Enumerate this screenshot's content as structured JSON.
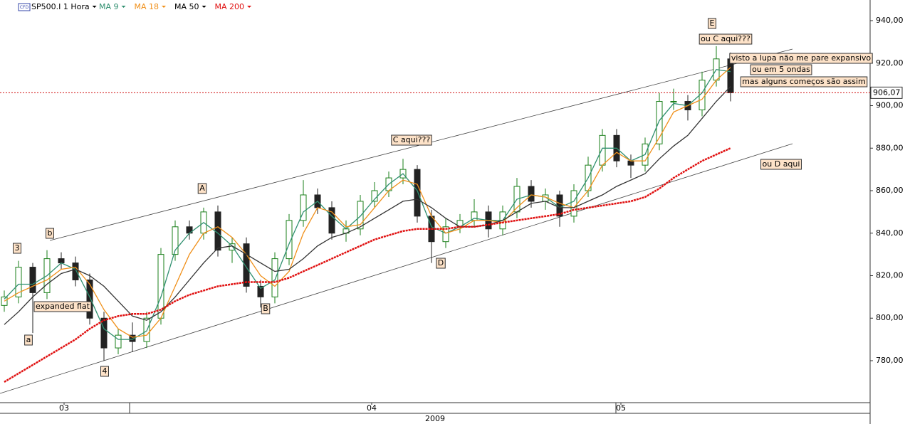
{
  "chart_data": {
    "type": "candlestick",
    "badge": "CFD",
    "title": "SP500.I 1 Hora",
    "up_color": "#1a7f1a",
    "down_color": "#222222",
    "open": [
      806,
      810,
      824,
      812,
      828,
      826,
      818,
      800,
      786,
      792,
      789,
      800,
      830,
      843,
      840,
      850,
      832,
      835,
      815,
      810,
      828,
      846,
      858,
      852,
      840,
      842,
      855,
      860,
      866,
      870,
      848,
      836,
      843,
      846,
      850,
      842,
      850,
      862,
      855,
      858,
      848,
      860,
      872,
      886,
      874,
      872,
      882,
      902,
      902,
      898,
      912,
      922
    ],
    "high": [
      813,
      827,
      826,
      832,
      831,
      829,
      821,
      803,
      795,
      798,
      803,
      833,
      846,
      846,
      852,
      853,
      838,
      838,
      818,
      831,
      849,
      865,
      861,
      855,
      846,
      858,
      864,
      869,
      875,
      872,
      851,
      847,
      849,
      856,
      853,
      853,
      866,
      865,
      861,
      860,
      863,
      876,
      889,
      889,
      877,
      885,
      906,
      908,
      905,
      916,
      928,
      925
    ],
    "low": [
      803,
      807,
      793,
      809,
      823,
      815,
      797,
      780,
      783,
      784,
      786,
      797,
      827,
      837,
      837,
      829,
      826,
      812,
      805,
      807,
      825,
      843,
      849,
      837,
      836,
      839,
      852,
      857,
      863,
      845,
      826,
      833,
      840,
      843,
      838,
      839,
      847,
      852,
      851,
      843,
      845,
      857,
      869,
      871,
      866,
      869,
      879,
      898,
      893,
      895,
      909,
      902
    ],
    "close": [
      810,
      824,
      812,
      828,
      826,
      818,
      800,
      786,
      792,
      789,
      800,
      830,
      843,
      840,
      850,
      832,
      835,
      815,
      810,
      828,
      846,
      858,
      852,
      840,
      842,
      855,
      860,
      866,
      870,
      848,
      836,
      843,
      846,
      850,
      842,
      850,
      862,
      855,
      858,
      848,
      860,
      872,
      886,
      874,
      872,
      882,
      902,
      902,
      898,
      912,
      922,
      906.07
    ],
    "series": [
      {
        "name": "MA 9",
        "color": "#2f8f6f",
        "values": [
          809,
          816,
          816,
          820,
          826,
          823,
          810,
          795,
          790,
          790,
          794,
          810,
          832,
          840,
          845,
          840,
          834,
          824,
          814,
          818,
          835,
          850,
          855,
          848,
          842,
          848,
          856,
          863,
          868,
          860,
          843,
          840,
          843,
          847,
          846,
          846,
          856,
          858,
          857,
          852,
          855,
          866,
          880,
          880,
          874,
          877,
          893,
          901,
          900,
          906,
          917,
          916
        ]
      },
      {
        "name": "MA 18",
        "color": "#f0901a",
        "values": [
          808,
          812,
          815,
          818,
          823,
          824,
          816,
          804,
          795,
          791,
          792,
          800,
          815,
          830,
          840,
          843,
          838,
          830,
          820,
          815,
          822,
          840,
          852,
          850,
          843,
          844,
          852,
          860,
          865,
          863,
          848,
          840,
          842,
          846,
          846,
          845,
          852,
          858,
          857,
          854,
          852,
          860,
          872,
          878,
          874,
          874,
          885,
          897,
          900,
          903,
          912,
          918
        ]
      },
      {
        "name": "MA 50",
        "color": "#333333",
        "values": [
          797,
          803,
          810,
          816,
          821,
          823,
          820,
          815,
          808,
          801,
          799,
          803,
          810,
          818,
          826,
          833,
          834,
          830,
          826,
          822,
          823,
          828,
          834,
          838,
          840,
          843,
          847,
          851,
          855,
          856,
          852,
          847,
          843,
          843,
          844,
          846,
          850,
          854,
          855,
          852,
          852,
          855,
          858,
          862,
          865,
          868,
          875,
          881,
          886,
          894,
          902,
          909
        ]
      },
      {
        "name": "MA 200",
        "color": "#e01010",
        "values": [
          770,
          774,
          778,
          782,
          786,
          790,
          795,
          799,
          801,
          802,
          802,
          804,
          808,
          811,
          813,
          815,
          816,
          817,
          817,
          817,
          819,
          822,
          825,
          828,
          831,
          834,
          837,
          839,
          841,
          842,
          842,
          842,
          843,
          843,
          844,
          845,
          846,
          847,
          848,
          849,
          851,
          852,
          853,
          854,
          855,
          857,
          861,
          866,
          870,
          874,
          877,
          880
        ]
      }
    ],
    "last_price": {
      "value": 906.07,
      "label": "906,07"
    },
    "ylim": [
      760.25,
      949.71
    ],
    "yticks": [
      {
        "value": 780,
        "label": "780,00"
      },
      {
        "value": 800,
        "label": "800,00"
      },
      {
        "value": 820,
        "label": "820,00"
      },
      {
        "value": 840,
        "label": "840,00"
      },
      {
        "value": 860,
        "label": "860,00"
      },
      {
        "value": 880,
        "label": "880,00"
      },
      {
        "value": 900,
        "label": "900,00"
      },
      {
        "value": 920,
        "label": "920,00"
      },
      {
        "value": 940,
        "label": "940,00"
      }
    ],
    "xlim": [
      -0.3,
      60.8
    ],
    "xticks": [
      {
        "value": 4.2,
        "label": "03"
      },
      {
        "value": 25.8,
        "label": "04"
      },
      {
        "value": 43.3,
        "label": "05"
      }
    ],
    "year": "2009",
    "annotations": [
      "3",
      "a",
      "b",
      "expanded flat",
      "4",
      "A",
      "B",
      "C aqui???",
      "D",
      "E",
      "ou C aqui???",
      "visto a lupa não me pare expansivo",
      "ou em 5 ondas",
      "mas alguns começos são assim",
      "ou D aqui"
    ]
  }
}
